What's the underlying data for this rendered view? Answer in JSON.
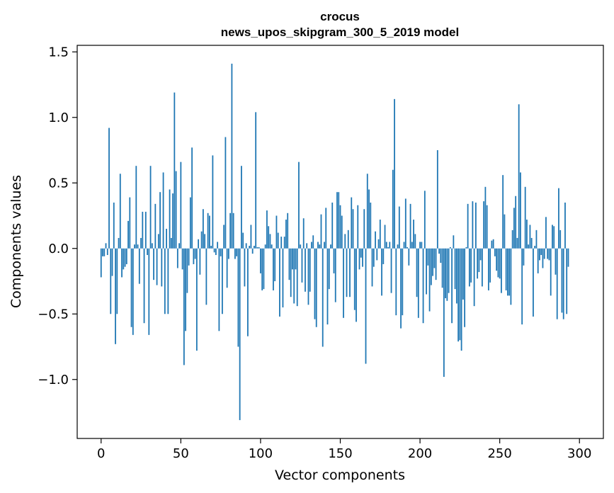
{
  "chart_data": {
    "type": "bar",
    "title": "crocus",
    "subtitle": "news_upos_skipgram_300_5_2019 model",
    "xlabel": "Vector components",
    "ylabel": "Components values",
    "xlim": [
      -15,
      315
    ],
    "ylim": [
      -1.45,
      1.55
    ],
    "xticks": [
      0,
      50,
      100,
      150,
      200,
      250,
      300
    ],
    "xtick_labels": [
      "0",
      "50",
      "100",
      "150",
      "200",
      "250",
      "300"
    ],
    "yticks": [
      -1.0,
      -0.5,
      0.0,
      0.5,
      1.0,
      1.5
    ],
    "ytick_labels": [
      "−1.0",
      "−0.5",
      "0.0",
      "0.5",
      "1.0",
      "1.5"
    ],
    "grid": false,
    "bar_color": "#1f77b4",
    "series": [
      {
        "values": [
          -0.22,
          -0.06,
          -0.06,
          0.04,
          -0.05,
          0.92,
          -0.5,
          -0.21,
          0.35,
          -0.73,
          -0.5,
          0.08,
          0.57,
          -0.22,
          -0.16,
          -0.14,
          -0.12,
          0.21,
          0.39,
          -0.6,
          -0.66,
          0.03,
          0.63,
          0.03,
          -0.27,
          0.08,
          0.28,
          -0.57,
          0.28,
          -0.05,
          -0.66,
          0.63,
          0.04,
          -0.24,
          0.34,
          -0.28,
          0.11,
          0.43,
          -0.29,
          0.58,
          -0.5,
          0.15,
          -0.5,
          0.45,
          0.08,
          0.42,
          1.19,
          0.59,
          -0.15,
          0.04,
          0.66,
          -0.16,
          -0.89,
          -0.63,
          -0.34,
          -0.13,
          0.39,
          0.77,
          -0.12,
          -0.08,
          -0.78,
          0.07,
          -0.2,
          0.13,
          0.3,
          0.11,
          -0.43,
          0.27,
          0.25,
          0.02,
          0.71,
          -0.03,
          -0.05,
          0.05,
          -0.63,
          -0.06,
          -0.5,
          0.18,
          0.85,
          -0.3,
          -0.08,
          0.27,
          1.41,
          0.27,
          -0.08,
          -0.06,
          -0.75,
          -1.31,
          0.63,
          0.12,
          -0.29,
          0.04,
          -0.67,
          0.02,
          0.18,
          -0.04,
          0.02,
          1.04,
          0.01,
          0.01,
          -0.19,
          -0.32,
          -0.31,
          0.03,
          0.29,
          0.17,
          0.11,
          0.03,
          -0.32,
          -0.25,
          0.25,
          0.12,
          -0.52,
          0.09,
          -0.45,
          0.09,
          0.22,
          0.27,
          -0.24,
          -0.37,
          -0.16,
          -0.42,
          -0.16,
          -0.44,
          0.66,
          0.03,
          -0.26,
          0.23,
          -0.33,
          0.04,
          -0.43,
          -0.33,
          0.05,
          0.1,
          -0.54,
          -0.6,
          0.05,
          0.03,
          0.26,
          -0.75,
          0.05,
          0.31,
          -0.58,
          -0.31,
          0.03,
          0.35,
          -0.19,
          -0.41,
          0.43,
          0.43,
          0.33,
          0.25,
          -0.53,
          0.11,
          -0.37,
          0.14,
          -0.37,
          0.39,
          0.3,
          -0.47,
          -0.56,
          0.33,
          -0.16,
          -0.07,
          -0.14,
          0.3,
          -0.88,
          0.57,
          0.45,
          0.35,
          -0.29,
          -0.14,
          0.13,
          -0.09,
          0.07,
          0.22,
          -0.36,
          -0.12,
          0.18,
          0.05,
          0.01,
          0.05,
          -0.34,
          0.6,
          1.14,
          -0.51,
          0.03,
          0.32,
          -0.61,
          -0.51,
          0.05,
          0.38,
          0.01,
          -0.13,
          0.34,
          0.05,
          0.22,
          0.11,
          -0.37,
          -0.53,
          0.05,
          0.05,
          -0.57,
          0.44,
          -0.35,
          -0.13,
          -0.48,
          -0.28,
          -0.21,
          -0.15,
          -0.24,
          0.75,
          -0.04,
          -0.11,
          -0.3,
          -0.98,
          -0.38,
          -0.4,
          -0.34,
          0.01,
          -0.57,
          0.1,
          -0.31,
          -0.42,
          -0.71,
          -0.7,
          -0.78,
          -0.39,
          -0.6,
          0.01,
          0.34,
          -0.29,
          -0.26,
          0.36,
          -0.44,
          0.35,
          -0.23,
          -0.18,
          -0.09,
          -0.29,
          0.36,
          0.47,
          0.33,
          -0.32,
          -0.26,
          0.06,
          0.07,
          -0.06,
          -0.17,
          -0.22,
          -0.23,
          -0.34,
          0.56,
          0.26,
          -0.32,
          -0.36,
          -0.36,
          -0.43,
          0.14,
          0.31,
          0.4,
          0.08,
          1.1,
          0.58,
          -0.58,
          -0.13,
          0.47,
          0.22,
          0.03,
          0.18,
          0.08,
          -0.52,
          0.02,
          0.14,
          -0.19,
          -0.09,
          -0.05,
          -0.15,
          -0.08,
          0.24,
          -0.08,
          -0.09,
          -0.36,
          0.18,
          0.17,
          -0.2,
          -0.54,
          0.46,
          0.14,
          -0.49,
          -0.54,
          0.35,
          -0.5,
          -0.14
        ]
      }
    ]
  }
}
